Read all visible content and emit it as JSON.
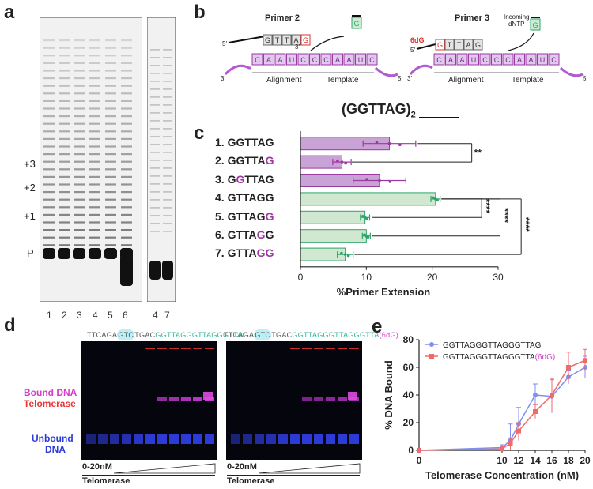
{
  "panels": {
    "a": {
      "letter": "a",
      "band_labels": [
        "+3",
        "+2",
        "+1",
        "P"
      ],
      "lane_numbers_left": [
        "1",
        "2",
        "3",
        "4",
        "5",
        "6"
      ],
      "lane_numbers_right": [
        "4",
        "7"
      ]
    },
    "b": {
      "letter": "b",
      "primer2_title": "Primer 2",
      "primer3_title": "Primer 3",
      "incoming_label": "Incoming\ndNTP",
      "mod_label": "6dG",
      "alignment_label": "Alignment",
      "template_label": "Template",
      "primer2_seq": [
        "G",
        "T",
        "T",
        "A",
        "G"
      ],
      "primer3_seq": [
        "G",
        "T",
        "T",
        "A",
        "G"
      ],
      "template_seq": [
        "C",
        "A",
        "A",
        "U",
        "C",
        "C",
        "C",
        "A",
        "A",
        "U",
        "C"
      ],
      "incoming_nt": "G",
      "five_prime": "5'",
      "three_prime": "3'"
    },
    "c": {
      "letter": "c",
      "title": "(GGTTAG)",
      "title_sub": "2"
    },
    "d": {
      "letter": "d",
      "seq_left_prefix": "TTCAGA",
      "seq_left_highlight": "GTC",
      "seq_left_mid": "TGAC",
      "seq_left_green": "GGTTAGGGTTAGGGTTAG",
      "seq_right_prefix": "TTCAGA",
      "seq_right_highlight": "GTC",
      "seq_right_mid": "TGAC",
      "seq_right_green": "GGTTAGGGTTAGGGTTA",
      "seq_right_mod": "(6dG)",
      "bound_label": "Bound DNA",
      "telomerase_label": "Telomerase",
      "unbound_label_1": "Unbound",
      "unbound_label_2": "DNA",
      "range_left": "0-20nM",
      "range_right": "0-20nM",
      "under_left": "Telomerase",
      "under_right": "Telomerase"
    },
    "e": {
      "letter": "e"
    }
  },
  "colors": {
    "purple": "#c9a3d6",
    "purple_dark": "#9b3aa0",
    "green": "#cfe8cf",
    "green_dark": "#2fa36b",
    "blue_series": "#7f8ff0",
    "red_series": "#ef6a6a",
    "cyan_highlight": "#bdeff6",
    "teal_seq": "#2fb59a",
    "magenta_seq": "#d63cc8"
  },
  "chart_data": [
    {
      "type": "bar",
      "orientation": "horizontal",
      "categories": [
        "1. GGTTAG",
        "2. GGTTAG",
        "3. GGTTAG",
        "4. GTTAGG",
        "5. GTTAGG",
        "6. GTTAGG",
        "7. GTTAGG"
      ],
      "values": [
        13.5,
        6.3,
        12.0,
        20.5,
        9.8,
        10.0,
        6.8
      ],
      "errors": [
        4.0,
        1.4,
        4.0,
        0.7,
        0.7,
        0.6,
        1.2
      ],
      "highlight_positions": [
        [],
        [
          5
        ],
        [
          1
        ],
        [],
        [
          5
        ],
        [
          4
        ],
        [
          4,
          5
        ]
      ],
      "groups": [
        "purple",
        "purple",
        "purple",
        "green",
        "green",
        "green",
        "green"
      ],
      "xlabel": "%Primer Extension",
      "ylabel": "",
      "xticks": [
        "0",
        "10",
        "20",
        "30"
      ],
      "xlim": [
        0,
        30
      ],
      "significance": [
        {
          "rows": [
            0,
            1
          ],
          "label": "**"
        },
        {
          "rows": [
            3,
            4
          ],
          "label": "****"
        },
        {
          "rows": [
            3,
            5
          ],
          "label": "****"
        },
        {
          "rows": [
            3,
            6
          ],
          "label": "****"
        }
      ]
    },
    {
      "type": "line",
      "x": [
        0,
        10,
        11,
        12,
        14,
        16,
        18,
        20
      ],
      "series": [
        {
          "name": "GGTTAGGGTTAGGGTTAG",
          "values": [
            0,
            2,
            7,
            19,
            40,
            39,
            53,
            60
          ],
          "errors": [
            0,
            2,
            12,
            12,
            8,
            12,
            5,
            8
          ]
        },
        {
          "name": "GGTTAGGGTTAGGGTTA",
          "name_suffix": "(6dG)",
          "values": [
            0,
            1,
            5,
            14,
            28,
            40,
            60,
            65
          ],
          "errors": [
            0,
            1,
            4,
            6,
            5,
            12,
            11,
            8
          ]
        }
      ],
      "xlabel": "Telomerase Concentration (nM)",
      "ylabel": "% DNA Bound",
      "xlim": [
        0,
        20
      ],
      "ylim": [
        0,
        80
      ],
      "xticks": [
        "0",
        "10",
        "12",
        "14",
        "16",
        "18",
        "20"
      ],
      "yticks": [
        "0",
        "20",
        "40",
        "60",
        "80"
      ],
      "legend": "top-left"
    }
  ]
}
